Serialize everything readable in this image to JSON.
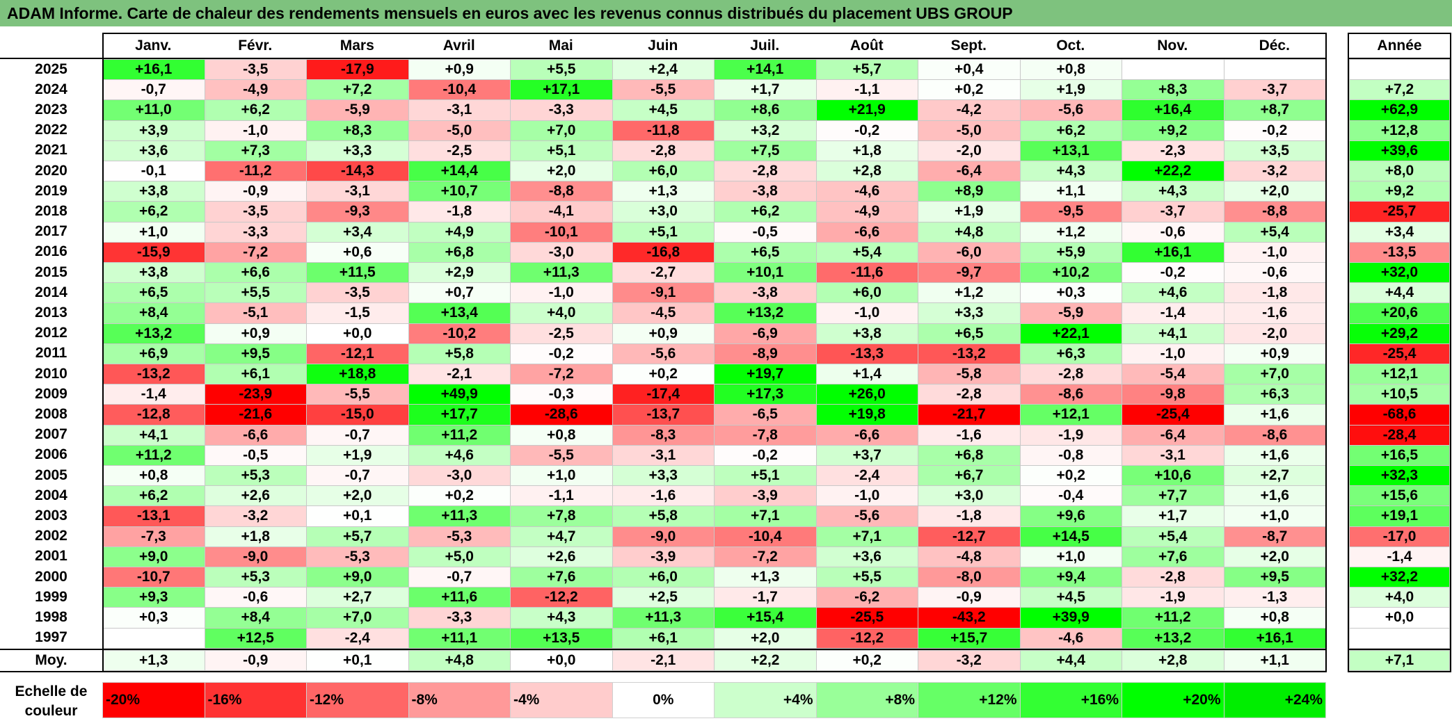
{
  "title": "ADAM Informe. Carte de chaleur des rendements mensuels en euros avec les revenus connus distribués du placement UBS GROUP",
  "chart_data": {
    "type": "heatmap",
    "columns": [
      "Janv.",
      "Févr.",
      "Mars",
      "Avril",
      "Mai",
      "Juin",
      "Juil.",
      "Août",
      "Sept.",
      "Oct.",
      "Nov.",
      "Déc."
    ],
    "year_header": "Année",
    "avg_label": "Moy.",
    "rows": [
      {
        "year": "2025",
        "values": [
          "+16,1",
          "-3,5",
          "-17,9",
          "+0,9",
          "+5,5",
          "+2,4",
          "+14,1",
          "+5,7",
          "+0,4",
          "+0,8",
          "",
          ""
        ],
        "annual": ""
      },
      {
        "year": "2024",
        "values": [
          "-0,7",
          "-4,9",
          "+7,2",
          "-10,4",
          "+17,1",
          "-5,5",
          "+1,7",
          "-1,1",
          "+0,2",
          "+1,9",
          "+8,3",
          "-3,7"
        ],
        "annual": "+7,2"
      },
      {
        "year": "2023",
        "values": [
          "+11,0",
          "+6,2",
          "-5,9",
          "-3,1",
          "-3,3",
          "+4,5",
          "+8,6",
          "+21,9",
          "-4,2",
          "-5,6",
          "+16,4",
          "+8,7"
        ],
        "annual": "+62,9"
      },
      {
        "year": "2022",
        "values": [
          "+3,9",
          "-1,0",
          "+8,3",
          "-5,0",
          "+7,0",
          "-11,8",
          "+3,2",
          "-0,2",
          "-5,0",
          "+6,2",
          "+9,2",
          "-0,2"
        ],
        "annual": "+12,8"
      },
      {
        "year": "2021",
        "values": [
          "+3,6",
          "+7,3",
          "+3,3",
          "-2,5",
          "+5,1",
          "-2,8",
          "+7,5",
          "+1,8",
          "-2,0",
          "+13,1",
          "-2,3",
          "+3,5"
        ],
        "annual": "+39,6"
      },
      {
        "year": "2020",
        "values": [
          "-0,1",
          "-11,2",
          "-14,3",
          "+14,4",
          "+2,0",
          "+6,0",
          "-2,8",
          "+2,8",
          "-6,4",
          "+4,3",
          "+22,2",
          "-3,2"
        ],
        "annual": "+8,0"
      },
      {
        "year": "2019",
        "values": [
          "+3,8",
          "-0,9",
          "-3,1",
          "+10,7",
          "-8,8",
          "+1,3",
          "-3,8",
          "-4,6",
          "+8,9",
          "+1,1",
          "+4,3",
          "+2,0"
        ],
        "annual": "+9,2"
      },
      {
        "year": "2018",
        "values": [
          "+6,2",
          "-3,5",
          "-9,3",
          "-1,8",
          "-4,1",
          "+3,0",
          "+6,2",
          "-4,9",
          "+1,9",
          "-9,5",
          "-3,7",
          "-8,8"
        ],
        "annual": "-25,7"
      },
      {
        "year": "2017",
        "values": [
          "+1,0",
          "-3,3",
          "+3,4",
          "+4,9",
          "-10,1",
          "+5,1",
          "-0,5",
          "-6,6",
          "+4,8",
          "+1,2",
          "-0,6",
          "+5,4"
        ],
        "annual": "+3,4"
      },
      {
        "year": "2016",
        "values": [
          "-15,9",
          "-7,2",
          "+0,6",
          "+6,8",
          "-3,0",
          "-16,8",
          "+6,5",
          "+5,4",
          "-6,0",
          "+5,9",
          "+16,1",
          "-1,0"
        ],
        "annual": "-13,5"
      },
      {
        "year": "2015",
        "values": [
          "+3,8",
          "+6,6",
          "+11,5",
          "+2,9",
          "+11,3",
          "-2,7",
          "+10,1",
          "-11,6",
          "-9,7",
          "+10,2",
          "-0,2",
          "-0,6"
        ],
        "annual": "+32,0"
      },
      {
        "year": "2014",
        "values": [
          "+6,5",
          "+5,5",
          "-3,5",
          "+0,7",
          "-1,0",
          "-9,1",
          "-3,8",
          "+6,0",
          "+1,2",
          "+0,3",
          "+4,6",
          "-1,8"
        ],
        "annual": "+4,4"
      },
      {
        "year": "2013",
        "values": [
          "+8,4",
          "-5,1",
          "-1,5",
          "+13,4",
          "+4,0",
          "-4,5",
          "+13,2",
          "-1,0",
          "+3,3",
          "-5,9",
          "-1,4",
          "-1,6"
        ],
        "annual": "+20,6"
      },
      {
        "year": "2012",
        "values": [
          "+13,2",
          "+0,9",
          "+0,0",
          "-10,2",
          "-2,5",
          "+0,9",
          "-6,9",
          "+3,8",
          "+6,5",
          "+22,1",
          "+4,1",
          "-2,0"
        ],
        "annual": "+29,2"
      },
      {
        "year": "2011",
        "values": [
          "+6,9",
          "+9,5",
          "-12,1",
          "+5,8",
          "-0,2",
          "-5,6",
          "-8,9",
          "-13,3",
          "-13,2",
          "+6,3",
          "-1,0",
          "+0,9"
        ],
        "annual": "-25,4"
      },
      {
        "year": "2010",
        "values": [
          "-13,2",
          "+6,1",
          "+18,8",
          "-2,1",
          "-7,2",
          "+0,2",
          "+19,7",
          "+1,4",
          "-5,8",
          "-2,8",
          "-5,4",
          "+7,0"
        ],
        "annual": "+12,1"
      },
      {
        "year": "2009",
        "values": [
          "-1,4",
          "-23,9",
          "-5,5",
          "+49,9",
          "-0,3",
          "-17,4",
          "+17,3",
          "+26,0",
          "-2,8",
          "-8,6",
          "-9,8",
          "+6,3"
        ],
        "annual": "+10,5"
      },
      {
        "year": "2008",
        "values": [
          "-12,8",
          "-21,6",
          "-15,0",
          "+17,7",
          "-28,6",
          "-13,7",
          "-6,5",
          "+19,8",
          "-21,7",
          "+12,1",
          "-25,4",
          "+1,6"
        ],
        "annual": "-68,6"
      },
      {
        "year": "2007",
        "values": [
          "+4,1",
          "-6,6",
          "-0,7",
          "+11,2",
          "+0,8",
          "-8,3",
          "-7,8",
          "-6,6",
          "-1,6",
          "-1,9",
          "-6,4",
          "-8,6"
        ],
        "annual": "-28,4"
      },
      {
        "year": "2006",
        "values": [
          "+11,2",
          "-0,5",
          "+1,9",
          "+4,6",
          "-5,5",
          "-3,1",
          "-0,2",
          "+3,7",
          "+6,8",
          "-0,8",
          "-3,1",
          "+1,6"
        ],
        "annual": "+16,5"
      },
      {
        "year": "2005",
        "values": [
          "+0,8",
          "+5,3",
          "-0,7",
          "-3,0",
          "+1,0",
          "+3,3",
          "+5,1",
          "-2,4",
          "+6,7",
          "+0,2",
          "+10,6",
          "+2,7"
        ],
        "annual": "+32,3"
      },
      {
        "year": "2004",
        "values": [
          "+6,2",
          "+2,6",
          "+2,0",
          "+0,2",
          "-1,1",
          "-1,6",
          "-3,9",
          "-1,0",
          "+3,0",
          "-0,4",
          "+7,7",
          "+1,6"
        ],
        "annual": "+15,6"
      },
      {
        "year": "2003",
        "values": [
          "-13,1",
          "-3,2",
          "+0,1",
          "+11,3",
          "+7,8",
          "+5,8",
          "+7,1",
          "-5,6",
          "-1,8",
          "+9,6",
          "+1,7",
          "+1,0"
        ],
        "annual": "+19,1"
      },
      {
        "year": "2002",
        "values": [
          "-7,3",
          "+1,8",
          "+5,7",
          "-5,3",
          "+4,7",
          "-9,0",
          "-10,4",
          "+7,1",
          "-12,7",
          "+14,5",
          "+5,4",
          "-8,7"
        ],
        "annual": "-17,0"
      },
      {
        "year": "2001",
        "values": [
          "+9,0",
          "-9,0",
          "-5,3",
          "+5,0",
          "+2,6",
          "-3,9",
          "-7,2",
          "+3,6",
          "-4,8",
          "+1,0",
          "+7,6",
          "+2,0"
        ],
        "annual": "-1,4"
      },
      {
        "year": "2000",
        "values": [
          "-10,7",
          "+5,3",
          "+9,0",
          "-0,7",
          "+7,6",
          "+6,0",
          "+1,3",
          "+5,5",
          "-8,0",
          "+9,4",
          "-2,8",
          "+9,5"
        ],
        "annual": "+32,2"
      },
      {
        "year": "1999",
        "values": [
          "+9,3",
          "-0,6",
          "+2,7",
          "+11,6",
          "-12,2",
          "+2,5",
          "-1,7",
          "-6,2",
          "-0,9",
          "+4,5",
          "-1,9",
          "-1,3"
        ],
        "annual": "+4,0"
      },
      {
        "year": "1998",
        "values": [
          "+0,3",
          "+8,4",
          "+7,0",
          "-3,3",
          "+4,3",
          "+11,3",
          "+15,4",
          "-25,5",
          "-43,2",
          "+39,9",
          "+11,2",
          "+0,8"
        ],
        "annual": "+0,0"
      },
      {
        "year": "1997",
        "values": [
          "",
          "+12,5",
          "-2,4",
          "+11,1",
          "+13,5",
          "+6,1",
          "+2,0",
          "-12,2",
          "+15,7",
          "-4,6",
          "+13,2",
          "+16,1"
        ],
        "annual": ""
      }
    ],
    "averages": [
      "+1,3",
      "-0,9",
      "+0,1",
      "+4,8",
      "+0,0",
      "-2,1",
      "+2,2",
      "+0,2",
      "-3,2",
      "+4,4",
      "+2,8",
      "+1,1"
    ],
    "annual_average": "+7,1",
    "scale": {
      "label_line1": "Echelle de",
      "label_line2": "couleur",
      "stops": [
        {
          "label": "-20%",
          "value": -20,
          "color": "#ff0000"
        },
        {
          "label": "-16%",
          "value": -16,
          "color": "#ff3333"
        },
        {
          "label": "-12%",
          "value": -12,
          "color": "#ff6666"
        },
        {
          "label": "-8%",
          "value": -8,
          "color": "#ff9999"
        },
        {
          "label": "-4%",
          "value": -4,
          "color": "#ffcccc"
        },
        {
          "label": "0%",
          "value": 0,
          "color": "#ffffff"
        },
        {
          "label": "+4%",
          "value": 4,
          "color": "#ccffcc"
        },
        {
          "label": "+8%",
          "value": 8,
          "color": "#99ff99"
        },
        {
          "label": "+12%",
          "value": 12,
          "color": "#66ff66"
        },
        {
          "label": "+16%",
          "value": 16,
          "color": "#33ff33"
        },
        {
          "label": "+20%",
          "value": 20,
          "color": "#00ff00"
        },
        {
          "label": "+24%",
          "value": 24,
          "color": "#00ee00"
        }
      ]
    },
    "colors": {
      "title_bar": "#7ec27e",
      "negative_max": "#ff0000",
      "positive_max": "#00ff00",
      "neutral": "#ffffff"
    }
  }
}
